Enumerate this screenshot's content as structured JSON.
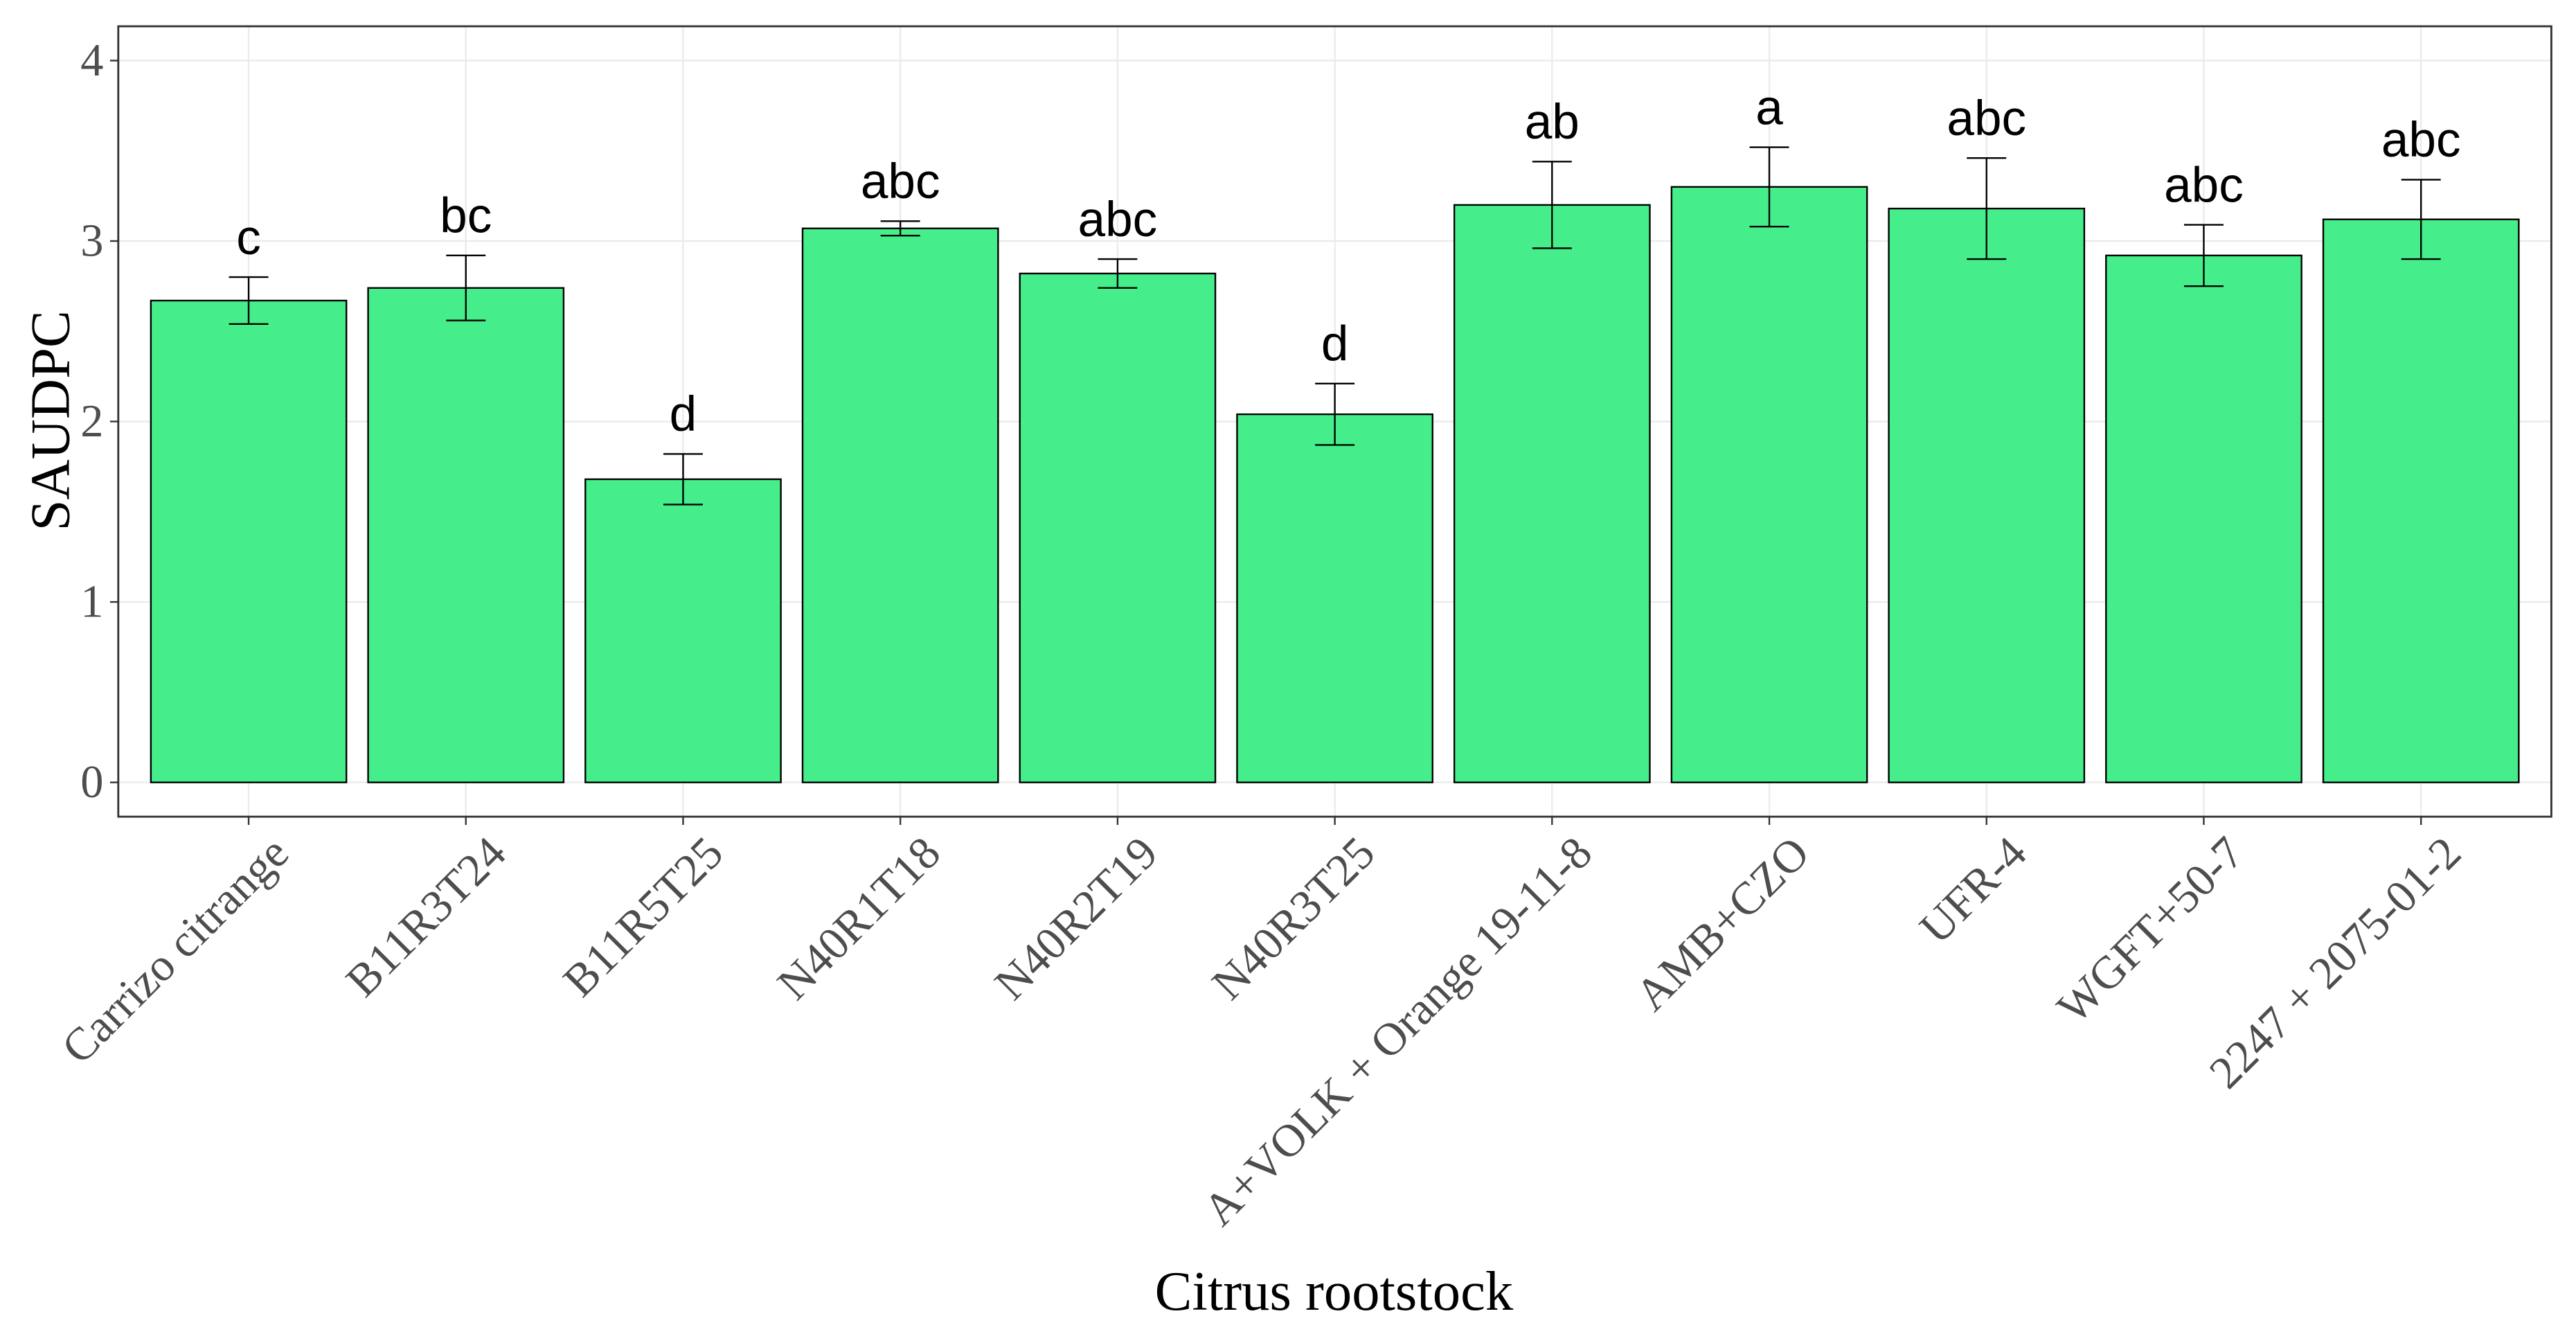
{
  "chart_data": {
    "type": "bar",
    "x_label": "Citrus rootstock",
    "y_label": "SAUDPC",
    "categories": [
      "Carrizo citrange",
      "B11R3T24",
      "B11R5T25",
      "N40R1T18",
      "N40R2T19",
      "N40R3T25",
      "A+VOLK + Orange 19-11-8",
      "AMB+CZO",
      "UFR-4",
      "WGFT+50-7",
      "2247 + 2075-01-2"
    ],
    "values": [
      2.67,
      2.74,
      1.68,
      3.07,
      2.82,
      2.04,
      3.2,
      3.3,
      3.18,
      2.92,
      3.12
    ],
    "errors": [
      0.13,
      0.18,
      0.14,
      0.04,
      0.08,
      0.17,
      0.24,
      0.22,
      0.28,
      0.17,
      0.22
    ],
    "annotations": [
      "c",
      "bc",
      "d",
      "abc",
      "abc",
      "d",
      "ab",
      "a",
      "abc",
      "abc",
      "abc"
    ],
    "color": "#45ee8a",
    "ylim": [
      -0.19,
      4.19
    ],
    "yticks": [
      0,
      1,
      2,
      3,
      4
    ],
    "grid": true
  }
}
